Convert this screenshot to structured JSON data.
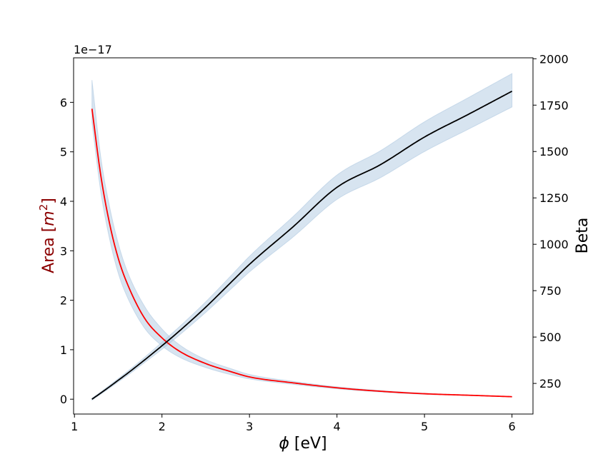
{
  "chart_data": {
    "type": "line",
    "x": [
      1.2,
      1.3,
      1.4,
      1.5,
      1.6,
      1.8,
      2.0,
      2.2,
      2.5,
      2.8,
      3.0,
      3.5,
      4.0,
      4.5,
      5.0,
      5.5,
      6.0
    ],
    "xlabel_italic": "ϕ",
    "xlabel_rest": " [eV]",
    "xlim": [
      0.99,
      6.24
    ],
    "xticks": [
      1,
      2,
      3,
      4,
      5,
      6
    ],
    "series": [
      {
        "axis": "left",
        "color": "#ff0000",
        "values": [
          5.87,
          4.53,
          3.56,
          2.85,
          2.35,
          1.64,
          1.24,
          0.97,
          0.72,
          0.55,
          0.45,
          0.33,
          0.23,
          0.16,
          0.11,
          0.08,
          0.05
        ],
        "band_lower": [
          5.6,
          4.2,
          3.25,
          2.55,
          2.08,
          1.44,
          1.08,
          0.85,
          0.64,
          0.49,
          0.41,
          0.3,
          0.21,
          0.145,
          0.1,
          0.075,
          0.045
        ],
        "band_upper": [
          6.45,
          4.9,
          3.9,
          3.15,
          2.6,
          1.88,
          1.42,
          1.1,
          0.8,
          0.61,
          0.5,
          0.36,
          0.25,
          0.175,
          0.12,
          0.085,
          0.055
        ]
      },
      {
        "axis": "right",
        "color": "#000000",
        "values": [
          165,
          198,
          232,
          267,
          302,
          376,
          453,
          533,
          661,
          800,
          892,
          1095,
          1307,
          1430,
          1578,
          1700,
          1825
        ],
        "band_lower": [
          160,
          192,
          224,
          258,
          291,
          362,
          434,
          511,
          633,
          764,
          851,
          1040,
          1242,
          1360,
          1500,
          1620,
          1740
        ],
        "band_upper": [
          170,
          204,
          240,
          276,
          313,
          390,
          472,
          556,
          690,
          836,
          935,
          1150,
          1373,
          1505,
          1660,
          1790,
          1920
        ]
      }
    ],
    "band_color": "#b0c9e1",
    "left_axis": {
      "label_text": "Area [",
      "label_var": "m",
      "label_exp": "2",
      "label_close": "]",
      "label_color": "#8b0000",
      "ylim": [
        -0.3,
        6.9
      ],
      "ticks": [
        0,
        1,
        2,
        3,
        4,
        5,
        6
      ],
      "offset_text": "1e−17"
    },
    "right_axis": {
      "label": "Beta",
      "label_color": "#000000",
      "ylim": [
        85,
        2005
      ],
      "ticks": [
        250,
        500,
        750,
        1000,
        1250,
        1500,
        1750,
        2000
      ]
    },
    "grid": false,
    "legend": "none"
  }
}
